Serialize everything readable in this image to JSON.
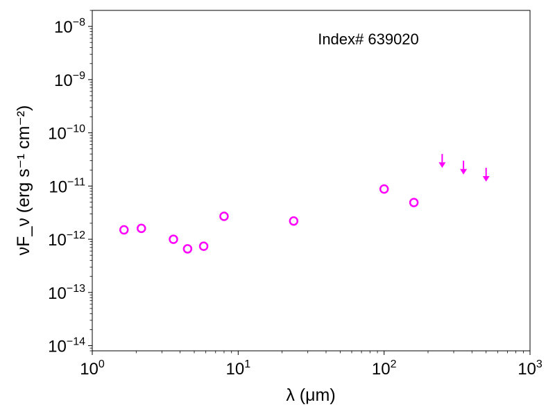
{
  "chart_data": {
    "type": "scatter",
    "annotation": "Index# 639020",
    "xlabel": "λ (μm)",
    "ylabel": "νF_ν (erg s⁻¹ cm⁻²)",
    "xscale": "log",
    "yscale": "log",
    "xlim": [
      1,
      1000
    ],
    "ylim": [
      8e-15,
      2e-08
    ],
    "xticks": [
      {
        "base": "10",
        "exp": "0",
        "value": 1
      },
      {
        "base": "10",
        "exp": "1",
        "value": 10
      },
      {
        "base": "10",
        "exp": "2",
        "value": 100
      },
      {
        "base": "10",
        "exp": "3",
        "value": 1000
      }
    ],
    "yticks": [
      {
        "base": "10",
        "exp": "−14",
        "value": 1e-14
      },
      {
        "base": "10",
        "exp": "−13",
        "value": 1e-13
      },
      {
        "base": "10",
        "exp": "−12",
        "value": 1e-12
      },
      {
        "base": "10",
        "exp": "−11",
        "value": 1e-11
      },
      {
        "base": "10",
        "exp": "−10",
        "value": 1e-10
      },
      {
        "base": "10",
        "exp": "−9",
        "value": 1e-09
      },
      {
        "base": "10",
        "exp": "−8",
        "value": 1e-08
      }
    ],
    "grid": false,
    "color": "#ff00ff",
    "detections": {
      "x": [
        1.65,
        2.17,
        3.6,
        4.5,
        5.8,
        8.0,
        24.0,
        100.0,
        160.0
      ],
      "y": [
        1.5e-12,
        1.6e-12,
        1e-12,
        6.6e-13,
        7.4e-13,
        2.7e-12,
        2.2e-12,
        8.8e-12,
        4.9e-12
      ]
    },
    "upper_limits": {
      "x": [
        250.0,
        350.0,
        500.0
      ],
      "y": [
        4e-11,
        3e-11,
        2.2e-11
      ]
    }
  }
}
